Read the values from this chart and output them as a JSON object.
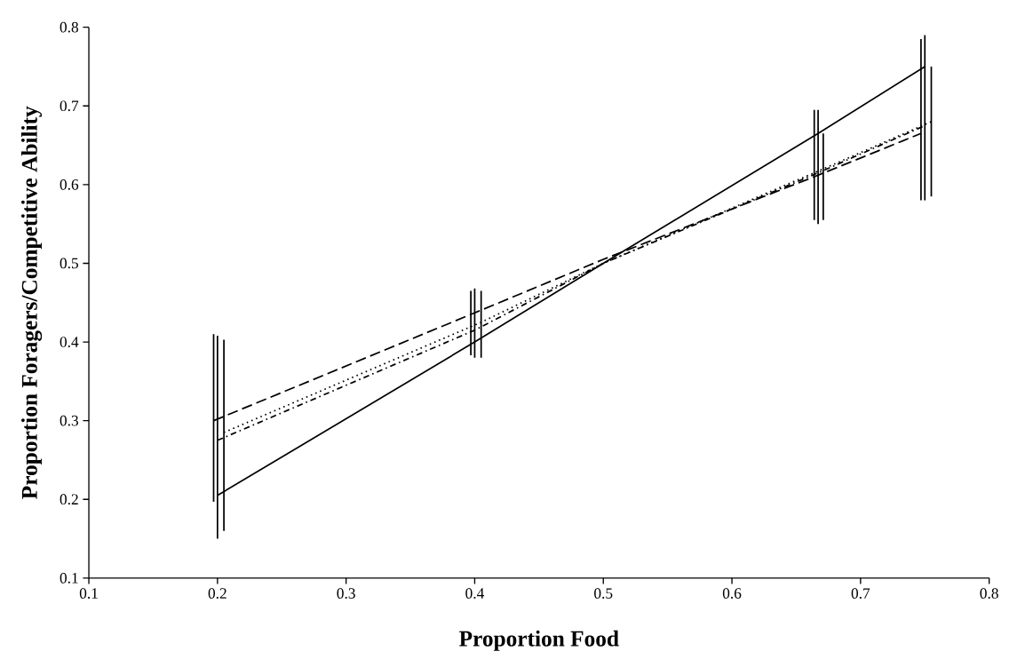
{
  "chart_data": {
    "type": "line",
    "xlabel": "Proportion Food",
    "ylabel": "Proportion Foragers/Competitive Ability",
    "xlim": [
      0.1,
      0.8
    ],
    "ylim": [
      0.1,
      0.8
    ],
    "xticks": [
      0.1,
      0.2,
      0.3,
      0.4,
      0.5,
      0.6,
      0.7,
      0.8
    ],
    "yticks": [
      0.1,
      0.2,
      0.3,
      0.4,
      0.5,
      0.6,
      0.7,
      0.8
    ],
    "grid": false,
    "marker": "none",
    "series": [
      {
        "color": "#000000",
        "line_style": "dashed",
        "x": [
          0.197,
          0.397,
          0.5,
          0.664,
          0.747
        ],
        "values": [
          0.3,
          0.435,
          0.505,
          0.61,
          0.665
        ],
        "errors": [
          [
            0.197,
            0.41
          ],
          [
            0.383,
            0.465
          ],
          null,
          [
            0.555,
            0.695
          ],
          [
            0.58,
            0.785
          ]
        ]
      },
      {
        "color": "#000000",
        "line_style": "solid",
        "x": [
          0.2,
          0.4,
          0.5,
          0.667,
          0.75
        ],
        "values": [
          0.205,
          0.4,
          0.5,
          0.665,
          0.75
        ],
        "errors": [
          [
            0.15,
            0.408
          ],
          [
            0.38,
            0.468
          ],
          null,
          [
            0.55,
            0.695
          ],
          [
            0.58,
            0.79
          ]
        ]
      },
      {
        "color": "#000000",
        "line_style": "dotted",
        "x": [
          0.205,
          0.405,
          0.5,
          0.671,
          0.755
        ],
        "values": [
          0.285,
          0.425,
          0.5,
          0.62,
          0.68
        ],
        "errors": [
          [
            0.16,
            0.403
          ],
          [
            0.38,
            0.465
          ],
          null,
          [
            0.555,
            0.665
          ],
          [
            0.585,
            0.75
          ]
        ]
      },
      {
        "color": "#000000",
        "line_style": "dashdotted",
        "x": [
          0.2,
          0.4,
          0.5,
          0.667,
          0.75
        ],
        "values": [
          0.275,
          0.415,
          0.5,
          0.615,
          0.675
        ]
      }
    ]
  }
}
